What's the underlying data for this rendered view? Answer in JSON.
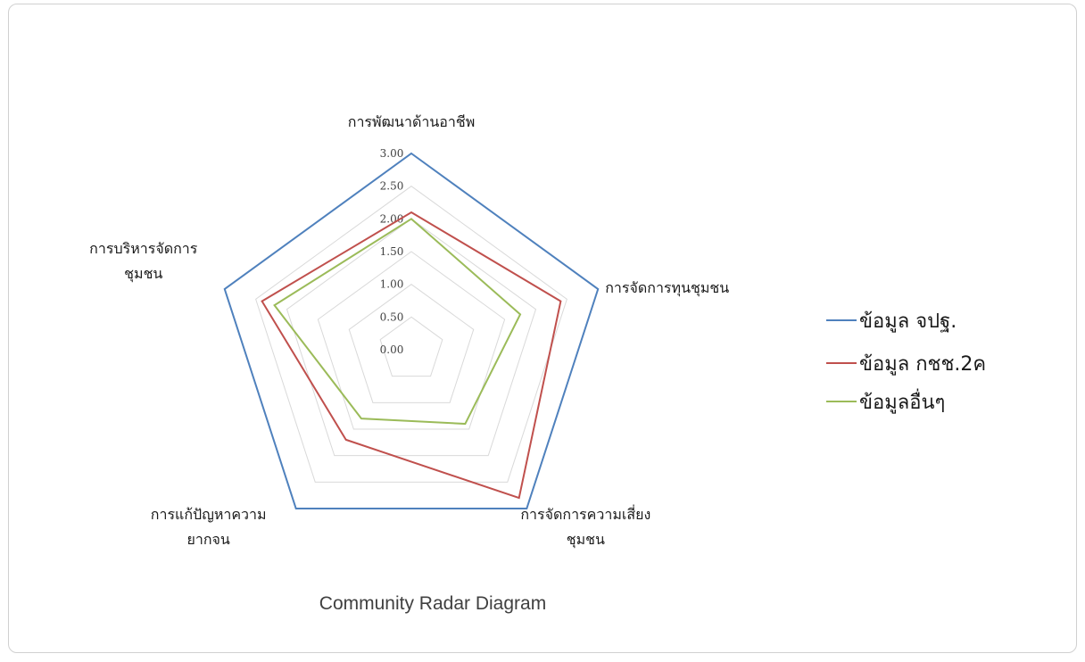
{
  "chart_data": {
    "type": "radar",
    "title": "Community Radar Diagram",
    "axes": [
      {
        "label_lines": [
          "การพัฒนาด้านอาชีพ"
        ]
      },
      {
        "label_lines": [
          "การจัดการทุนชุมชน"
        ]
      },
      {
        "label_lines": [
          "การจัดการความเสี่ยง",
          "ชุมชน"
        ]
      },
      {
        "label_lines": [
          "การแก้ปัญหาความ",
          "ยากจน"
        ]
      },
      {
        "label_lines": [
          "การบริหารจัดการ",
          "ชุมชน"
        ]
      }
    ],
    "rlim": [
      0,
      3
    ],
    "ticks": [
      "0.00",
      "0.50",
      "1.00",
      "1.50",
      "2.00",
      "2.50",
      "3.00"
    ],
    "grid": true,
    "legend_position": "right",
    "series": [
      {
        "name": "ข้อมูล จปฐ.",
        "color": "#4f81bd",
        "values": [
          3.0,
          3.0,
          3.0,
          3.0,
          3.0
        ]
      },
      {
        "name": "ข้อมูล กชช.2ค",
        "color": "#c0504d",
        "values": [
          2.1,
          2.4,
          2.8,
          1.7,
          2.4
        ]
      },
      {
        "name": "ข้อมูลอื่นๆ",
        "color": "#9bbb59",
        "values": [
          2.0,
          1.75,
          1.4,
          1.3,
          2.2
        ]
      }
    ]
  }
}
